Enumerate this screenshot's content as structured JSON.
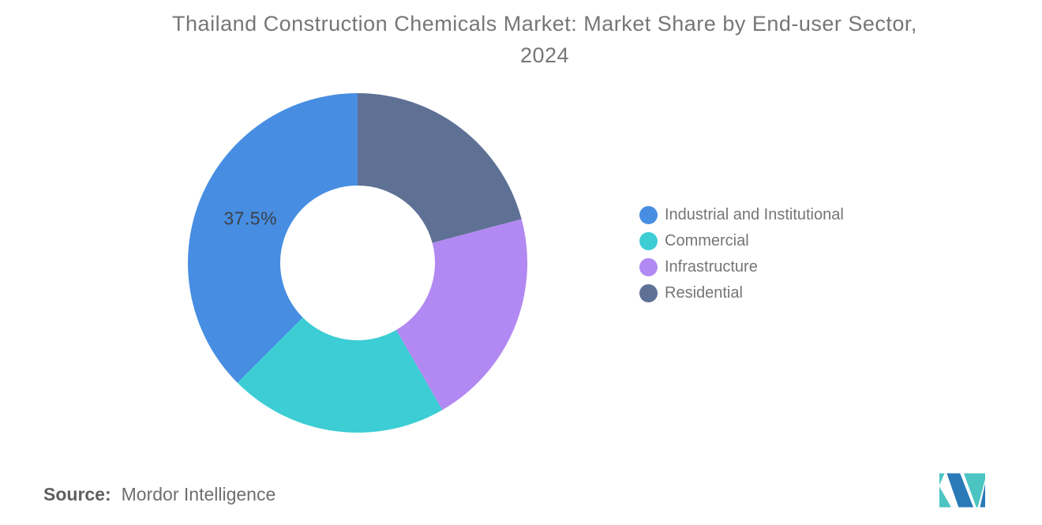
{
  "header": {
    "title_line1": "Thailand Construction Chemicals Market: Market Share by End-user Sector,",
    "title_line2": "2024"
  },
  "footer": {
    "source_label": "Source:",
    "source_value": "Mordor Intelligence"
  },
  "logo_colors": {
    "blue": "#2b7ab8",
    "teal": "#4cc5c2"
  },
  "chart_data": {
    "type": "pie",
    "subtype": "donut",
    "title": "Thailand Construction Chemicals Market: Market Share by End-user Sector, 2024",
    "unit": "percent",
    "start_angle": "top",
    "direction": "counterclockwise",
    "inner_radius_ratio": 0.46,
    "legend_position": "right",
    "grid": false,
    "series": [
      {
        "name": "Industrial and Institutional",
        "value": 37.5,
        "color": "#478ee2",
        "slice_label": "37.5%"
      },
      {
        "name": "Commercial",
        "value": 20.83,
        "color": "#3dcdd4",
        "slice_label": ""
      },
      {
        "name": "Infrastructure",
        "value": 20.83,
        "color": "#b289f2",
        "slice_label": ""
      },
      {
        "name": "Residential",
        "value": 20.84,
        "color": "#5e7195",
        "slice_label": ""
      }
    ]
  }
}
